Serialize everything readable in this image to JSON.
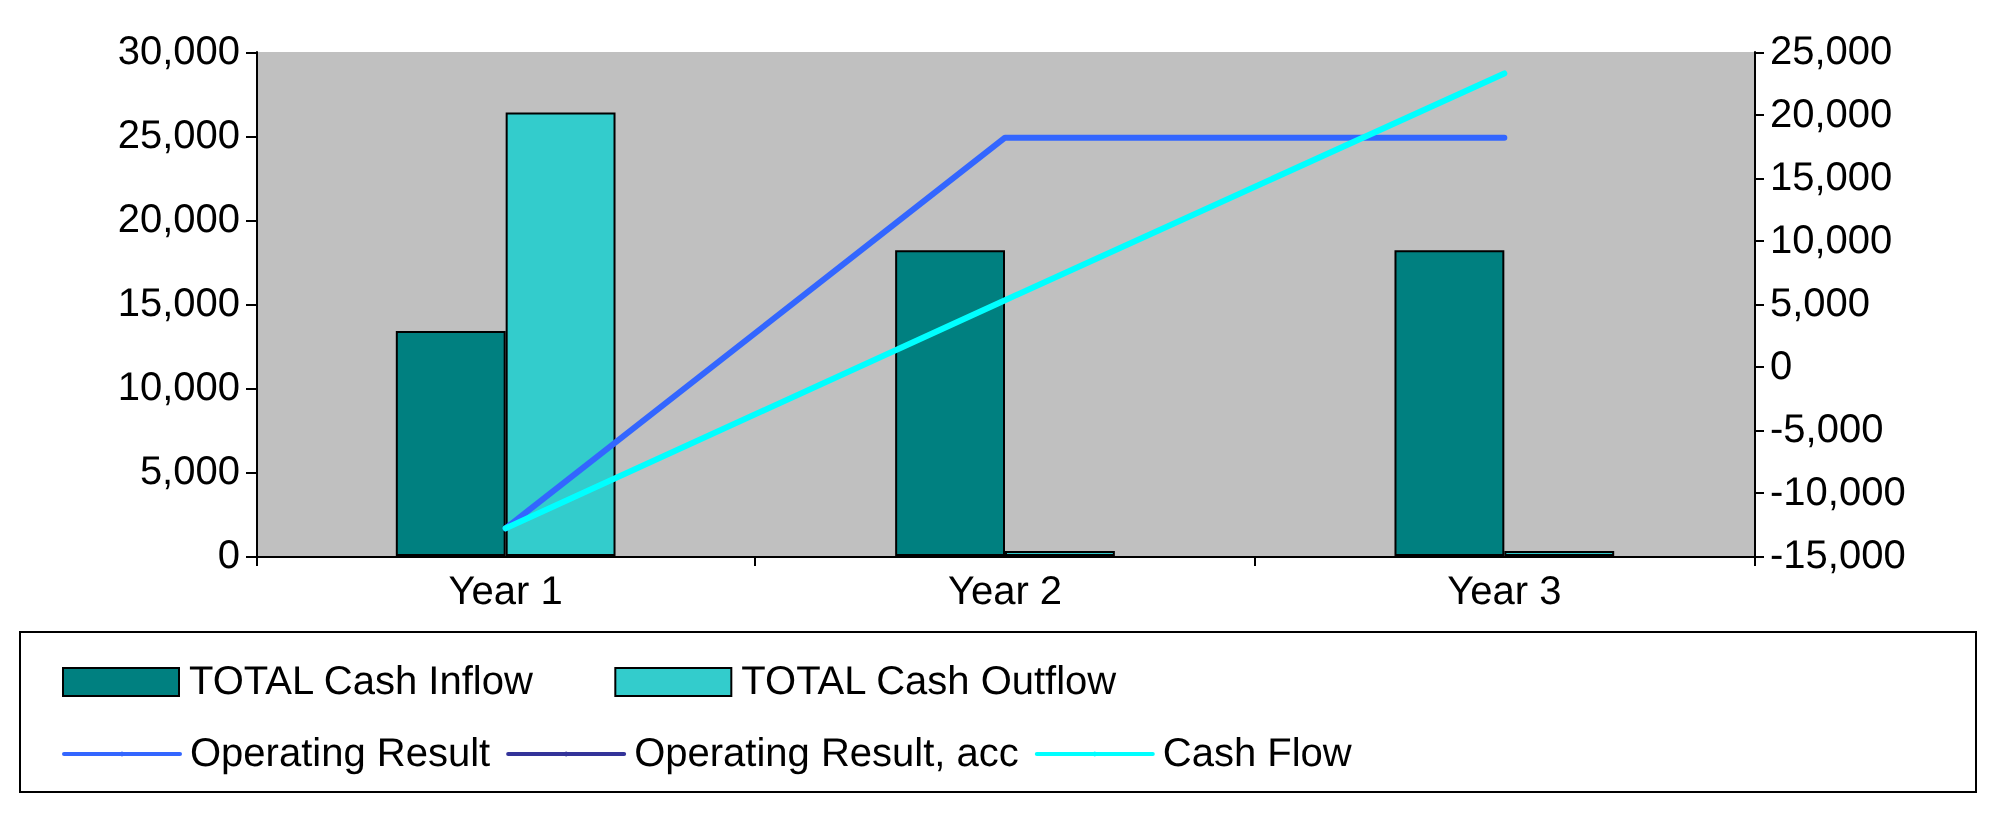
{
  "chart_data": {
    "type": "bar",
    "categories": [
      "Year 1",
      "Year 2",
      "Year 3"
    ],
    "series": [
      {
        "name": "TOTAL Cash Inflow",
        "color": "#008080",
        "values": [
          13400,
          18200,
          18200
        ]
      },
      {
        "name": "TOTAL Cash Outflow",
        "color": "#33cccc",
        "values": [
          26400,
          300,
          300
        ]
      },
      {
        "name": "Operating Result",
        "type": "line",
        "axis": "y2",
        "color": "#3366ff",
        "values": [
          -12800,
          18200,
          18200
        ]
      },
      {
        "name": "Operating Result, acc",
        "type": "line",
        "axis": "y2",
        "color": "#333399",
        "values": [
          null,
          null,
          null
        ]
      },
      {
        "name": "Cash Flow",
        "type": "line",
        "axis": "y2",
        "color": "#00ffff",
        "values": [
          -12800,
          5300,
          23300
        ]
      }
    ],
    "ylim": [
      0,
      30000
    ],
    "yticks": [
      0,
      {
        "value": 5000,
        "label": "5,000"
      },
      {
        "value": 10000,
        "label": "10,000"
      },
      {
        "value": 15000,
        "label": "15,000"
      },
      {
        "value": 20000,
        "label": "20,000"
      },
      {
        "value": 25000,
        "label": "25,000"
      },
      {
        "value": 30000,
        "label": "30,000"
      }
    ],
    "y2lim": [
      -15000,
      25000
    ],
    "y2ticks": [
      {
        "value": -15000,
        "label": "-15,000"
      },
      {
        "value": -10000,
        "label": "-10,000"
      },
      {
        "value": -5000,
        "label": "-5,000"
      },
      0,
      {
        "value": 5000,
        "label": "5,000"
      },
      {
        "value": 10000,
        "label": "10,000"
      },
      {
        "value": 15000,
        "label": "15,000"
      },
      {
        "value": 20000,
        "label": "20,000"
      },
      {
        "value": 25000,
        "label": "25,000"
      }
    ],
    "grid": false,
    "legend": "bottom",
    "marker": "none",
    "line_style": "solid"
  }
}
